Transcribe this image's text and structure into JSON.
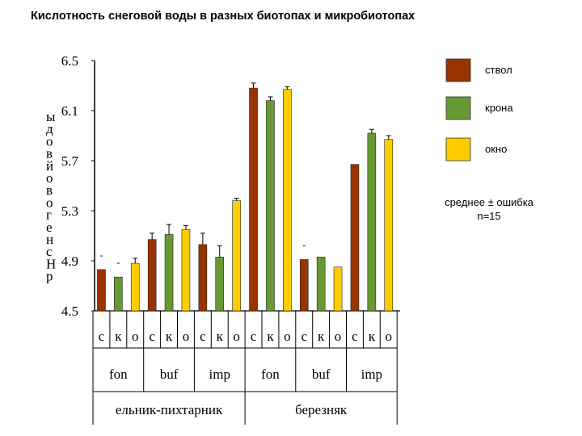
{
  "title": "Кислотность снеговой воды в разных биотопах и микробиотопах",
  "chart_data": {
    "type": "bar",
    "ylabel": "рН снеговой воды",
    "ylim": [
      4.5,
      6.5
    ],
    "yticks": [
      "6.5",
      "6.1",
      "5.7",
      "5.3",
      "4.9",
      "4.5"
    ],
    "series_names": [
      "ствол",
      "крона",
      "окно"
    ],
    "series_colors": [
      "#993300",
      "#669933",
      "#FFCC00"
    ],
    "biotopes": [
      {
        "name": "ельник-пихтарник",
        "groups": [
          {
            "name": "fon",
            "subs": [
              "с",
              "к",
              "о"
            ],
            "values": [
              4.83,
              4.77,
              4.88
            ],
            "errors": [
              0,
              0,
              0.04
            ],
            "marks": [
              "-",
              "-",
              ""
            ]
          },
          {
            "name": "buf",
            "subs": [
              "с",
              "к",
              "о"
            ],
            "values": [
              5.07,
              5.11,
              5.15
            ],
            "errors": [
              0.05,
              0.08,
              0.03
            ],
            "marks": [
              "",
              "",
              ""
            ]
          },
          {
            "name": "imp",
            "subs": [
              "с",
              "к",
              "о"
            ],
            "values": [
              5.03,
              4.93,
              5.38
            ],
            "errors": [
              0.09,
              0.09,
              0.02
            ],
            "marks": [
              "",
              "",
              ""
            ]
          }
        ]
      },
      {
        "name": "березняк",
        "groups": [
          {
            "name": "fon",
            "subs": [
              "с",
              "к",
              "о"
            ],
            "values": [
              6.28,
              6.18,
              6.27
            ],
            "errors": [
              0.04,
              0.03,
              0.02
            ],
            "marks": [
              "",
              "",
              ""
            ]
          },
          {
            "name": "buf",
            "subs": [
              "с",
              "к",
              "о"
            ],
            "values": [
              4.91,
              4.93,
              4.85
            ],
            "errors": [
              0,
              0,
              0
            ],
            "marks": [
              "-",
              "",
              ""
            ]
          },
          {
            "name": "imp",
            "subs": [
              "с",
              "к",
              "о"
            ],
            "values": [
              5.67,
              5.92,
              5.87
            ],
            "errors": [
              0,
              0.03,
              0.03
            ],
            "marks": [
              "",
              "",
              ""
            ]
          }
        ]
      }
    ],
    "note": [
      "среднее ± ошибка",
      "n=15"
    ]
  }
}
